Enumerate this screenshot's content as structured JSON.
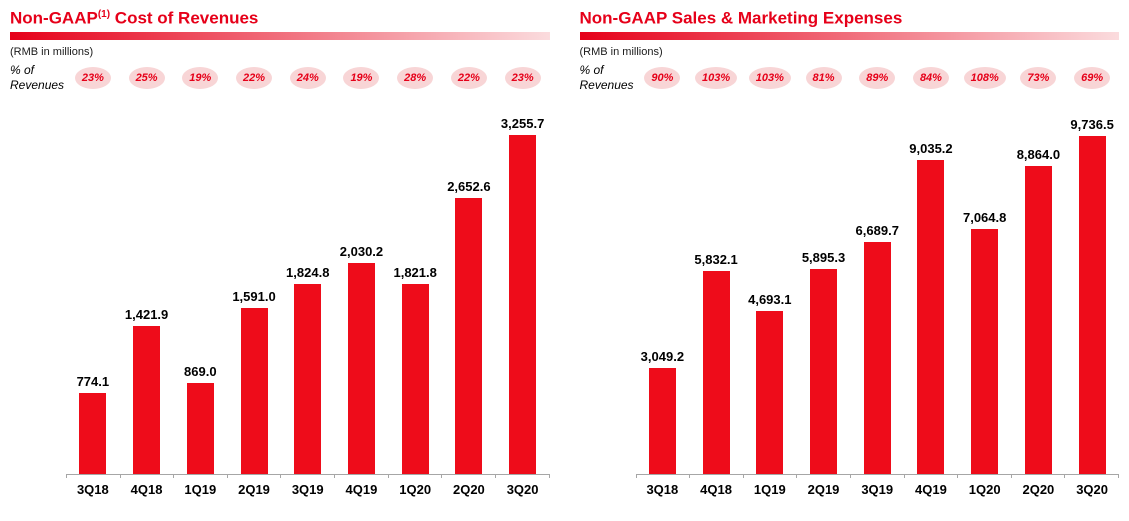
{
  "colors": {
    "accent_red": "#E60019",
    "bar_red": "#EE0C1A",
    "gradient_start": "#E60019",
    "gradient_end": "#FBDCDE",
    "badge_bg": "#F8D5D6",
    "badge_text": "#E60019",
    "axis": "#A6A6A6"
  },
  "chart_data": [
    {
      "type": "bar",
      "title": "Non-GAAP(1) Cost of Revenues",
      "title_prefix": "Non-GAAP",
      "title_sup": "(1)",
      "title_suffix": " Cost of Revenues",
      "subtitle": "(RMB in millions)",
      "pct_label_line1": "% of",
      "pct_label_line2": "Revenues",
      "categories": [
        "3Q18",
        "4Q18",
        "1Q19",
        "2Q19",
        "3Q19",
        "4Q19",
        "1Q20",
        "2Q20",
        "3Q20"
      ],
      "values": [
        774.1,
        1421.9,
        869.0,
        1591.0,
        1824.8,
        2030.2,
        1821.8,
        2652.6,
        3255.7
      ],
      "value_labels": [
        "774.1",
        "1,421.9",
        "869.0",
        "1,591.0",
        "1,824.8",
        "2,030.2",
        "1,821.8",
        "2,652.6",
        "3,255.7"
      ],
      "pct_of_revenues": [
        "23%",
        "25%",
        "19%",
        "22%",
        "24%",
        "19%",
        "28%",
        "22%",
        "23%"
      ],
      "xlabel": "",
      "ylabel": "",
      "ylim": [
        0,
        3600
      ],
      "grid": false,
      "legend": false
    },
    {
      "type": "bar",
      "title": "Non-GAAP Sales & Marketing Expenses",
      "title_prefix": "Non-GAAP Sales & Marketing Expenses",
      "title_sup": "",
      "title_suffix": "",
      "subtitle": "(RMB in millions)",
      "pct_label_line1": "% of",
      "pct_label_line2": "Revenues",
      "categories": [
        "3Q18",
        "4Q18",
        "1Q19",
        "2Q19",
        "3Q19",
        "4Q19",
        "1Q20",
        "2Q20",
        "3Q20"
      ],
      "values": [
        3049.2,
        5832.1,
        4693.1,
        5895.3,
        6689.7,
        9035.2,
        7064.8,
        8864.0,
        9736.5
      ],
      "value_labels": [
        "3,049.2",
        "5,832.1",
        "4,693.1",
        "5,895.3",
        "6,689.7",
        "9,035.2",
        "7,064.8",
        "8,864.0",
        "9,736.5"
      ],
      "pct_of_revenues": [
        "90%",
        "103%",
        "103%",
        "81%",
        "89%",
        "84%",
        "108%",
        "73%",
        "69%"
      ],
      "xlabel": "",
      "ylabel": "",
      "ylim": [
        0,
        10800
      ],
      "grid": false,
      "legend": false
    }
  ]
}
